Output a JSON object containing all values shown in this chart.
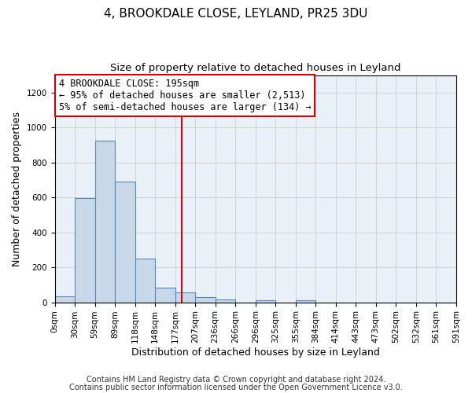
{
  "title1": "4, BROOKDALE CLOSE, LEYLAND, PR25 3DU",
  "title2": "Size of property relative to detached houses in Leyland",
  "xlabel": "Distribution of detached houses by size in Leyland",
  "ylabel": "Number of detached properties",
  "bin_labels": [
    "0sqm",
    "30sqm",
    "59sqm",
    "89sqm",
    "118sqm",
    "148sqm",
    "177sqm",
    "207sqm",
    "236sqm",
    "266sqm",
    "296sqm",
    "325sqm",
    "355sqm",
    "384sqm",
    "414sqm",
    "443sqm",
    "473sqm",
    "502sqm",
    "532sqm",
    "561sqm",
    "591sqm"
  ],
  "bar_values": [
    35,
    595,
    925,
    690,
    248,
    85,
    55,
    28,
    18,
    0,
    12,
    0,
    12,
    0,
    0,
    0,
    0,
    0,
    0,
    0
  ],
  "bar_color": "#c8d8e8",
  "bar_edge_color": "#5588bb",
  "vline_x": 6.33,
  "vline_color": "#cc0000",
  "ylim": [
    0,
    1300
  ],
  "yticks": [
    0,
    200,
    400,
    600,
    800,
    1000,
    1200
  ],
  "annotation_line1": "4 BROOKDALE CLOSE: 195sqm",
  "annotation_line2": "← 95% of detached houses are smaller (2,513)",
  "annotation_line3": "5% of semi-detached houses are larger (134) →",
  "footer1": "Contains HM Land Registry data © Crown copyright and database right 2024.",
  "footer2": "Contains public sector information licensed under the Open Government Licence v3.0.",
  "title1_fontsize": 11,
  "title2_fontsize": 9.5,
  "xlabel_fontsize": 9,
  "ylabel_fontsize": 9,
  "annotation_fontsize": 8.5,
  "footer_fontsize": 7,
  "tick_fontsize": 7.5
}
